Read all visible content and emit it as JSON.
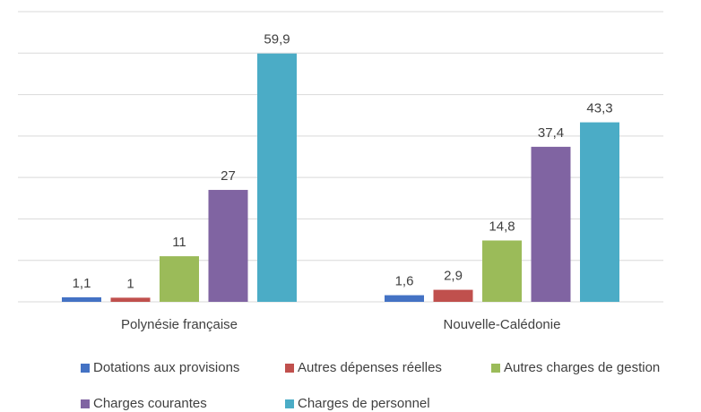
{
  "chart_data": {
    "type": "bar",
    "categories": [
      "Polynésie française",
      "Nouvelle-Calédonie"
    ],
    "series": [
      {
        "name": "Dotations aux provisions",
        "color": "#4472c4",
        "values": [
          1.1,
          1.6
        ],
        "value_labels": [
          "1,1",
          "1,6"
        ]
      },
      {
        "name": "Autres dépenses réelles",
        "color": "#c0504d",
        "values": [
          1,
          2.9
        ],
        "value_labels": [
          "1",
          "2,9"
        ]
      },
      {
        "name": "Autres charges de gestion",
        "color": "#9bbb59",
        "values": [
          11,
          14.8
        ],
        "value_labels": [
          "11",
          "14,8"
        ]
      },
      {
        "name": "Charges courantes",
        "color": "#8064a2",
        "values": [
          27,
          37.4
        ],
        "value_labels": [
          "27",
          "37,4"
        ]
      },
      {
        "name": "Charges de personnel",
        "color": "#4bacc6",
        "values": [
          59.9,
          43.3
        ],
        "value_labels": [
          "59,9",
          "43,3"
        ]
      }
    ],
    "ylim": [
      0,
      70
    ],
    "yticks": [
      0,
      10,
      20,
      30,
      40,
      50,
      60,
      70
    ],
    "grid": true,
    "legend": "bottom"
  }
}
